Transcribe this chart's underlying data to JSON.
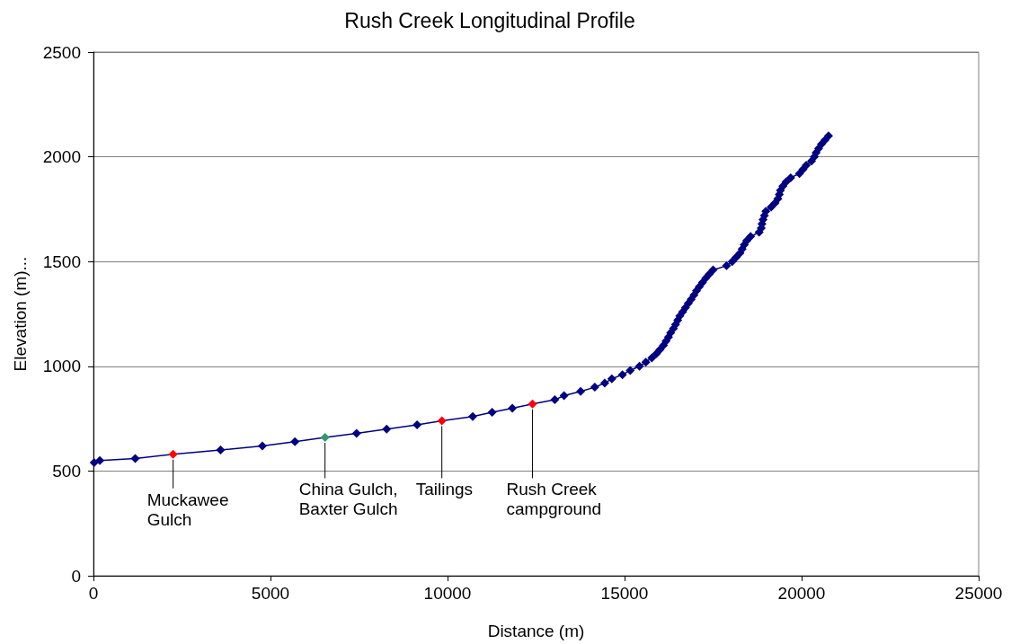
{
  "chart_data": {
    "type": "line",
    "title": "Rush Creek Longitudinal Profile",
    "xlabel": "Distance (m)",
    "ylabel": "Elevation (m)...",
    "x": [
      20,
      180,
      1180,
      2250,
      3590,
      4770,
      5690,
      6540,
      7430,
      8280,
      9140,
      9840,
      10710,
      11260,
      11830,
      12400,
      13030,
      13290,
      13760,
      14160,
      14440,
      14640,
      14940,
      15160,
      15420,
      15600,
      15770,
      15900,
      16000,
      16100,
      16170,
      16240,
      16300,
      16380,
      16440,
      16500,
      16560,
      16640,
      16720,
      16800,
      16880,
      16960,
      17030,
      17110,
      17200,
      17290,
      17390,
      17500,
      17880,
      18040,
      18150,
      18260,
      18320,
      18380,
      18450,
      18560,
      18800,
      18860,
      18880,
      18910,
      18950,
      18990,
      19140,
      19250,
      19330,
      19370,
      19400,
      19470,
      19560,
      19690,
      19940,
      20040,
      20130,
      20280,
      20360,
      20410,
      20480,
      20560,
      20660,
      20760
    ],
    "values": [
      540,
      550,
      560,
      580,
      600,
      620,
      640,
      660,
      680,
      700,
      720,
      740,
      760,
      780,
      800,
      820,
      840,
      860,
      880,
      900,
      920,
      940,
      960,
      980,
      1000,
      1020,
      1040,
      1060,
      1080,
      1100,
      1120,
      1140,
      1160,
      1180,
      1200,
      1220,
      1240,
      1260,
      1280,
      1300,
      1320,
      1340,
      1360,
      1380,
      1400,
      1420,
      1440,
      1460,
      1480,
      1500,
      1520,
      1540,
      1560,
      1580,
      1600,
      1620,
      1640,
      1660,
      1680,
      1700,
      1720,
      1740,
      1760,
      1780,
      1800,
      1820,
      1840,
      1860,
      1880,
      1900,
      1920,
      1940,
      1960,
      1980,
      2000,
      2020,
      2040,
      2060,
      2080,
      2100
    ],
    "color": "#000080",
    "colors": [
      "#000080",
      "#000080",
      "#000080",
      "#ff0000",
      "#000080",
      "#000080",
      "#000080",
      "#339966",
      "#000080",
      "#000080",
      "#000080",
      "#ff0000",
      "#000080",
      "#000080",
      "#000080",
      "#ff0000",
      "#000080",
      "#000080",
      "#000080",
      "#000080",
      "#000080",
      "#000080",
      "#000080",
      "#000080",
      "#000080",
      "#000080",
      "#000080",
      "#000080",
      "#000080",
      "#000080",
      "#000080",
      "#000080",
      "#000080",
      "#000080",
      "#000080",
      "#000080",
      "#000080",
      "#000080",
      "#000080",
      "#000080",
      "#000080",
      "#000080",
      "#000080",
      "#000080",
      "#000080",
      "#000080",
      "#000080",
      "#000080",
      "#000080",
      "#000080",
      "#000080",
      "#000080",
      "#000080",
      "#000080",
      "#000080",
      "#000080",
      "#000080",
      "#000080",
      "#000080",
      "#000080",
      "#000080",
      "#000080",
      "#000080",
      "#000080",
      "#000080",
      "#000080",
      "#000080",
      "#000080",
      "#000080",
      "#000080",
      "#000080",
      "#000080",
      "#000080",
      "#000080",
      "#000080",
      "#000080",
      "#000080",
      "#000080",
      "#000080",
      "#000080"
    ],
    "xlim": [
      0,
      25000
    ],
    "xticks": [
      0,
      5000,
      10000,
      15000,
      20000,
      25000
    ],
    "ylim": [
      0,
      2500
    ],
    "yticks": [
      0,
      500,
      1000,
      1500,
      2000,
      2500
    ],
    "grid": "y",
    "marker": "diamond",
    "line_style": "solid",
    "annotations": [
      {
        "text": "Muckawee Gulch",
        "x": 2250,
        "y": 580
      },
      {
        "text": "China Gulch, Baxter Gulch",
        "x": 6540,
        "y": 660
      },
      {
        "text": "Tailings",
        "x": 9840,
        "y": 740
      },
      {
        "text": "Rush Creek campground",
        "x": 12400,
        "y": 820
      }
    ]
  }
}
